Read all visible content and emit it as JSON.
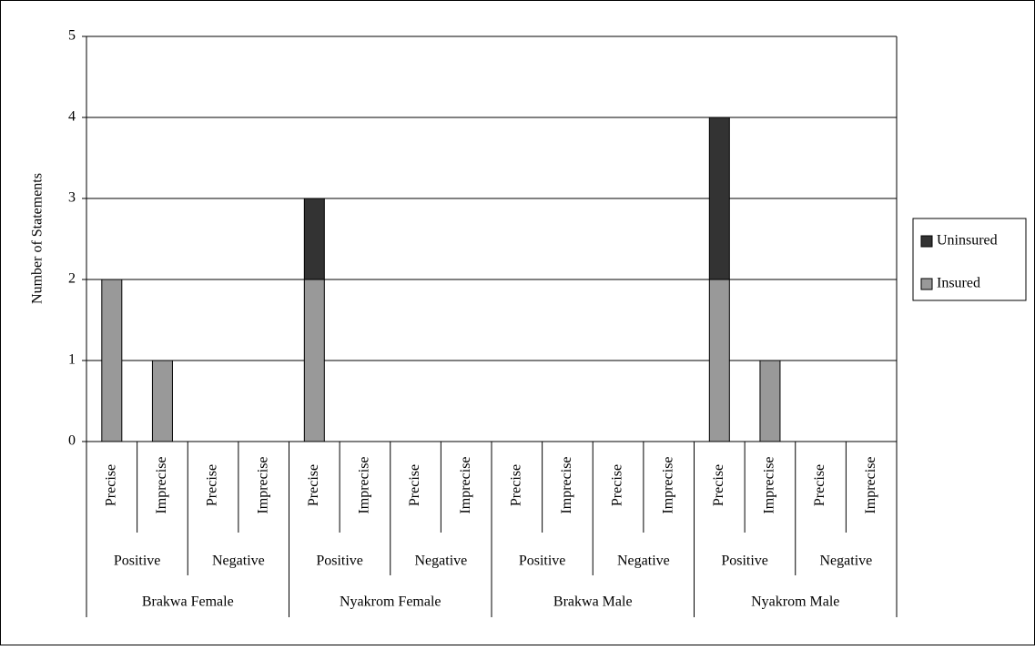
{
  "chart_data": {
    "type": "stacked-bar",
    "y_label": "Number of Statements",
    "categories": [
      "Precise",
      "Imprecise",
      "Precise",
      "Imprecise",
      "Precise",
      "Imprecise",
      "Precise",
      "Imprecise",
      "Precise",
      "Imprecise",
      "Precise",
      "Imprecise",
      "Precise",
      "Imprecise",
      "Precise",
      "Imprecise"
    ],
    "category_groups": [
      "Positive",
      "Negative",
      "Positive",
      "Negative",
      "Positive",
      "Negative",
      "Positive",
      "Negative"
    ],
    "category_supergroups": [
      "Brakwa Female",
      "Nyakrom Female",
      "Brakwa Male",
      "Nyakrom Male"
    ],
    "series": [
      {
        "name": "Insured",
        "color": "#999999",
        "values": [
          2,
          1,
          0,
          0,
          2,
          0,
          0,
          0,
          0,
          0,
          0,
          0,
          2,
          1,
          0,
          0
        ]
      },
      {
        "name": "Uninsured",
        "color": "#333333",
        "values": [
          0,
          0,
          0,
          0,
          1,
          0,
          0,
          0,
          0,
          0,
          0,
          0,
          2,
          0,
          0,
          0
        ]
      }
    ],
    "ylim": [
      0,
      5
    ],
    "yticks": [
      0,
      1,
      2,
      3,
      4,
      5
    ],
    "grid": true,
    "legend": "right"
  }
}
